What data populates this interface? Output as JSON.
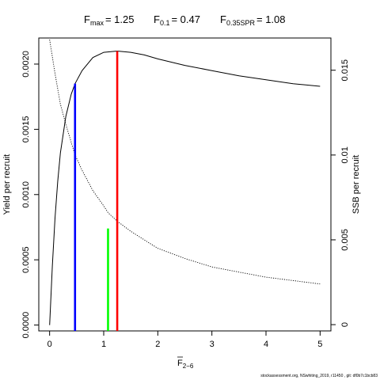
{
  "chart_data": {
    "type": "line",
    "title": {
      "fmax_label": "F",
      "fmax_sub": "max",
      "fmax_value": "= 1.25",
      "f01_label": "F",
      "f01_sub": "0.1",
      "f01_value": "= 0.47",
      "fspr_label": "F",
      "fspr_sub": "0.35SPR",
      "fspr_value": "= 1.08"
    },
    "xlabel": "F",
    "xlabel_sub": "2−6",
    "ylabel": "Yield per recruit",
    "y2label": "SSB per recruit",
    "xlim": [
      -0.2,
      5.2
    ],
    "ylim": [
      -4.5e-05,
      0.0022
    ],
    "y2lim": [
      -0.00037,
      0.0169
    ],
    "xticks": [
      0,
      1,
      2,
      3,
      4,
      5
    ],
    "yticks": [
      0.0,
      0.0005,
      0.001,
      0.0015,
      0.002
    ],
    "yticklabels": [
      "0.0000",
      "0.0005",
      "0.0010",
      "0.0015",
      "0.0020"
    ],
    "y2ticks": [
      0,
      0.005,
      0.01,
      0.015
    ],
    "y2ticklabels": [
      "0",
      "0.005",
      "0.01",
      "0.015"
    ],
    "series": [
      {
        "axis": "left",
        "style": "solid",
        "color": "#000000",
        "x": [
          0,
          0.05,
          0.1,
          0.15,
          0.2,
          0.3,
          0.4,
          0.47,
          0.6,
          0.8,
          1.0,
          1.25,
          1.5,
          1.75,
          2.0,
          2.5,
          3.0,
          3.5,
          4.0,
          4.5,
          5.0
        ],
        "values": [
          0.0,
          0.00045,
          0.00082,
          0.0011,
          0.00132,
          0.0016,
          0.00177,
          0.00185,
          0.00195,
          0.00205,
          0.00209,
          0.0021,
          0.00209,
          0.00207,
          0.00204,
          0.00199,
          0.00195,
          0.00191,
          0.00188,
          0.00185,
          0.00183
        ]
      },
      {
        "axis": "right",
        "style": "dotted",
        "color": "#000000",
        "x": [
          0,
          0.1,
          0.2,
          0.3,
          0.47,
          0.6,
          0.8,
          1.0,
          1.08,
          1.25,
          1.5,
          2.0,
          2.5,
          3.0,
          3.5,
          4.0,
          4.5,
          5.0
        ],
        "values": [
          0.0168,
          0.0148,
          0.013,
          0.0118,
          0.01,
          0.0091,
          0.0079,
          0.007,
          0.0066,
          0.0061,
          0.0055,
          0.0045,
          0.0039,
          0.0034,
          0.0031,
          0.0028,
          0.0026,
          0.0024
        ]
      }
    ],
    "reference_lines": [
      {
        "x": 0.47,
        "y": 0.00185,
        "color": "#0000ff"
      },
      {
        "x": 1.08,
        "y": 0.00074,
        "color": "#00ff00"
      },
      {
        "x": 1.25,
        "y": 0.0021,
        "color": "#ff0000"
      }
    ],
    "footer": "stockassessment.org, NSwhiting_2019, r11450 ,  git: df0b7c1bcb83"
  }
}
